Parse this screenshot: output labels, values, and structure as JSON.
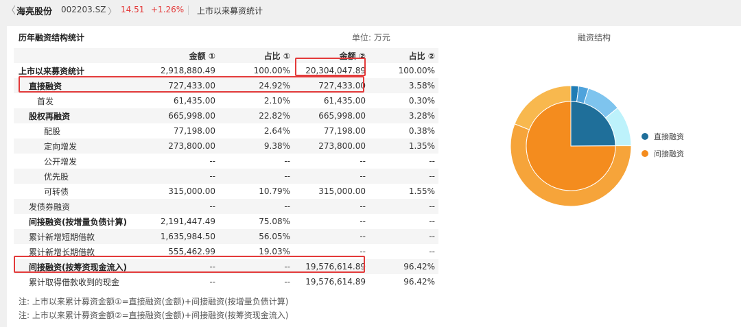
{
  "header": {
    "back_glyph": "〈",
    "stock_name": "海亮股份",
    "stock_code": "002203.SZ",
    "chevron": "〉",
    "price": "14.51",
    "change": "+1.26%",
    "page_title": "上市以来募资统计"
  },
  "section": {
    "title": "历年融资结构统计",
    "unit": "单位: 万元",
    "pie_title": "融资结构"
  },
  "table": {
    "columns": [
      "",
      "金额 ①",
      "占比 ①",
      "金额 ②",
      "占比 ②"
    ],
    "rows": [
      {
        "label": "上市以来募资统计",
        "c1": "2,918,880.49",
        "c2": "100.00%",
        "c3": "20,304,047.89",
        "c4": "100.00%"
      },
      {
        "label": "直接融资",
        "c1": "727,433.00",
        "c2": "24.92%",
        "c3": "727,433.00",
        "c4": "3.58%"
      },
      {
        "label": "首发",
        "c1": "61,435.00",
        "c2": "2.10%",
        "c3": "61,435.00",
        "c4": "0.30%"
      },
      {
        "label": "股权再融资",
        "c1": "665,998.00",
        "c2": "22.82%",
        "c3": "665,998.00",
        "c4": "3.28%"
      },
      {
        "label": "配股",
        "c1": "77,198.00",
        "c2": "2.64%",
        "c3": "77,198.00",
        "c4": "0.38%"
      },
      {
        "label": "定向增发",
        "c1": "273,800.00",
        "c2": "9.38%",
        "c3": "273,800.00",
        "c4": "1.35%"
      },
      {
        "label": "公开增发",
        "c1": "--",
        "c2": "--",
        "c3": "--",
        "c4": "--"
      },
      {
        "label": "优先股",
        "c1": "--",
        "c2": "--",
        "c3": "--",
        "c4": "--"
      },
      {
        "label": "可转债",
        "c1": "315,000.00",
        "c2": "10.79%",
        "c3": "315,000.00",
        "c4": "1.55%"
      },
      {
        "label": "发债券融资",
        "c1": "--",
        "c2": "--",
        "c3": "--",
        "c4": "--"
      },
      {
        "label": "间接融资(按增量负债计算)",
        "c1": "2,191,447.49",
        "c2": "75.08%",
        "c3": "--",
        "c4": "--"
      },
      {
        "label": "累计新增短期借款",
        "c1": "1,635,984.50",
        "c2": "56.05%",
        "c3": "--",
        "c4": "--"
      },
      {
        "label": "累计新增长期借款",
        "c1": "555,462.99",
        "c2": "19.03%",
        "c3": "--",
        "c4": "--"
      },
      {
        "label": "间接融资(按筹资现金流入)",
        "c1": "--",
        "c2": "--",
        "c3": "19,576,614.89",
        "c4": "96.42%"
      },
      {
        "label": "累计取得借款收到的现金",
        "c1": "--",
        "c2": "--",
        "c3": "19,576,614.89",
        "c4": "96.42%"
      }
    ]
  },
  "notes": [
    "注: 上市以来累计募资金额①=直接融资(金额)+间接融资(按增量负债计算)",
    "注: 上市以来累计募资金额②=直接融资(金额)+间接融资(按筹资现金流入)"
  ],
  "legend": [
    {
      "label": "直接融资",
      "color": "#1f6f9a"
    },
    {
      "label": "间接融资",
      "color": "#f48c1e"
    }
  ],
  "colors": {
    "accent_red": "#e43a3a",
    "highlight_border": "#e33a3a",
    "direct": "#1f6f9a",
    "indirect": "#f48c1e"
  },
  "chart_data": {
    "type": "pie",
    "title": "融资结构",
    "inner": [
      {
        "name": "直接融资",
        "value": 24.92,
        "color": "#1f6f9a"
      },
      {
        "name": "间接融资",
        "value": 75.08,
        "color": "#f48c1e"
      }
    ],
    "outer": [
      {
        "name": "首发",
        "value": 2.1,
        "color": "#1f7cb4"
      },
      {
        "name": "配股",
        "value": 2.64,
        "color": "#4fa3dc"
      },
      {
        "name": "定向增发",
        "value": 9.38,
        "color": "#7ec4ee"
      },
      {
        "name": "可转债",
        "value": 10.79,
        "color": "#bdf2fb"
      },
      {
        "name": "累计新增短期借款",
        "value": 56.05,
        "color": "#f6a43a"
      },
      {
        "name": "累计新增长期借款",
        "value": 19.03,
        "color": "#f8b84e"
      }
    ],
    "legend_position": "right"
  }
}
